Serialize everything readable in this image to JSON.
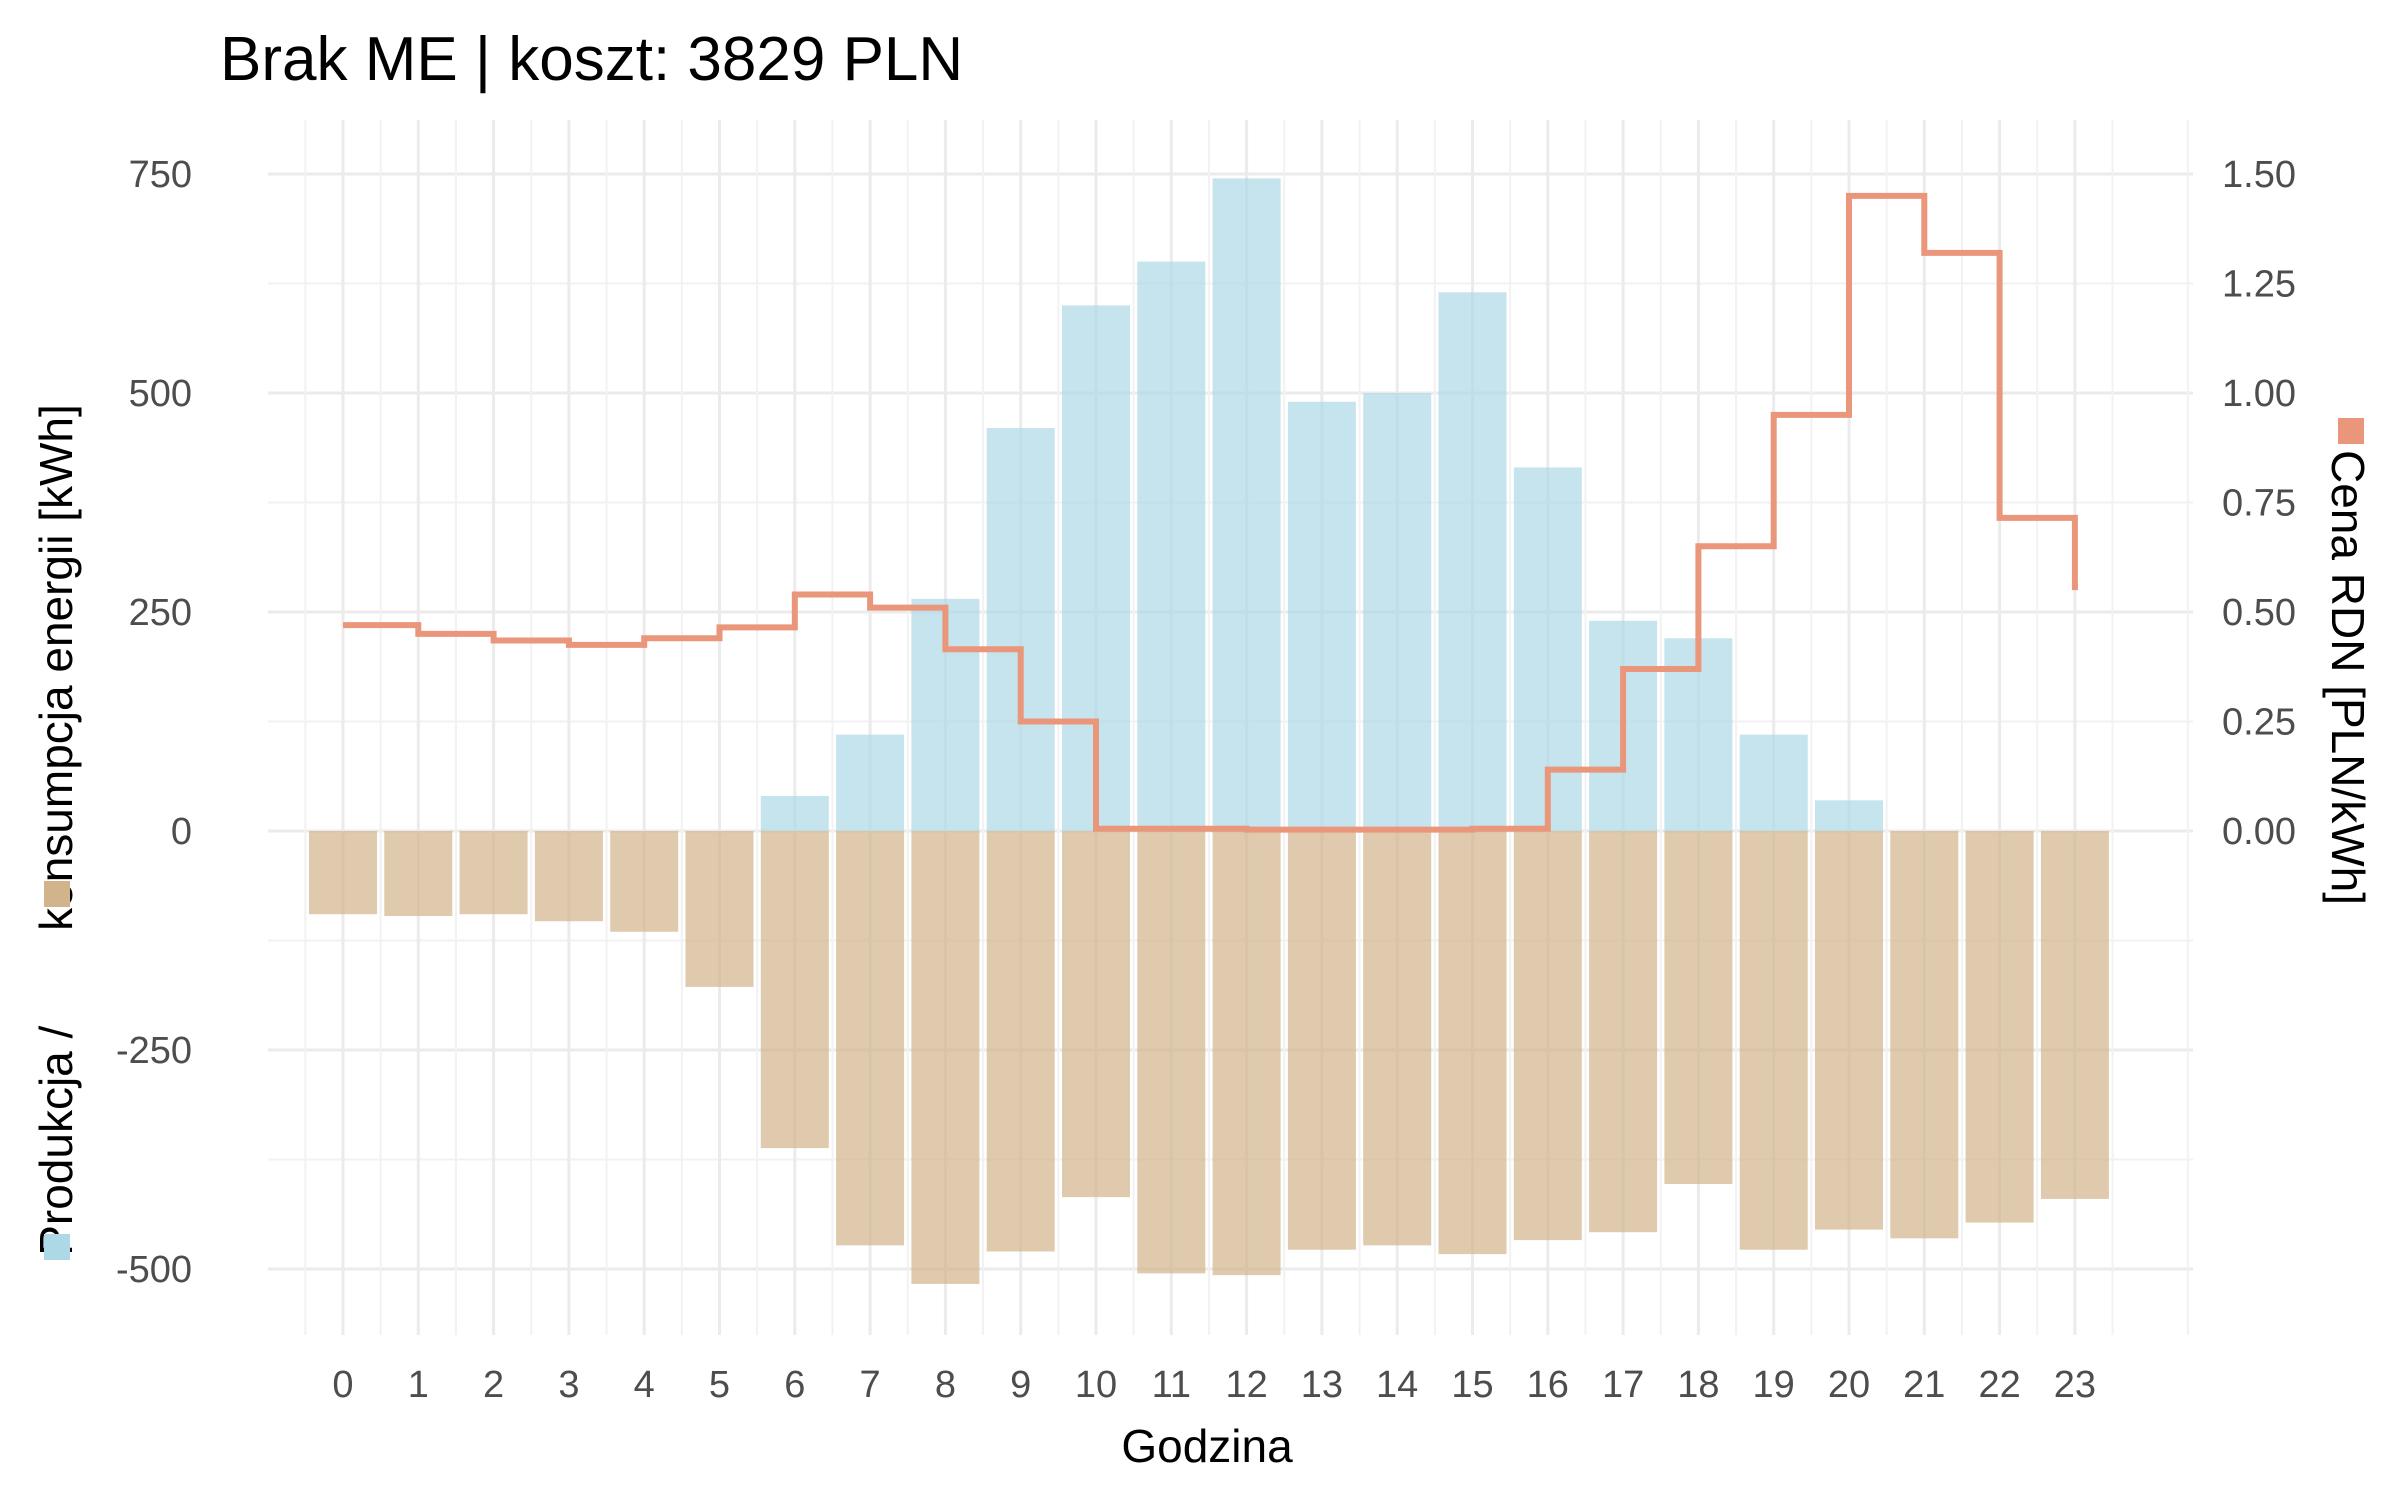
{
  "chart_data": {
    "type": "bar",
    "title": "Brak ME | koszt: 3829 PLN",
    "xlabel": "Godzina",
    "ylabel_left_parts": [
      "Produkcja /",
      "konsumpcja energii [kWh]"
    ],
    "ylabel_right": "Cena RDN [PLN/kWh]",
    "categories": [
      "0",
      "1",
      "2",
      "3",
      "4",
      "5",
      "6",
      "7",
      "8",
      "9",
      "10",
      "11",
      "12",
      "13",
      "14",
      "15",
      "16",
      "17",
      "18",
      "19",
      "20",
      "21",
      "22",
      "23"
    ],
    "ylim": [
      -575,
      790
    ],
    "ylim_right": [
      -1.15,
      1.58
    ],
    "yticks": [
      750,
      500,
      250,
      0,
      -250,
      -500
    ],
    "ytick_labels": [
      "750",
      "500",
      "250",
      "0",
      "-250",
      "-500"
    ],
    "yticks_right": [
      1.5,
      1.25,
      1.0,
      0.75,
      0.5,
      0.25,
      0.0
    ],
    "ytick_right_labels": [
      "1.50",
      "1.25",
      "1.00",
      "0.75",
      "0.50",
      "0.25",
      "0.00"
    ],
    "series": [
      {
        "name": "Produkcja",
        "kind": "bar",
        "color": "#add8e6",
        "values": [
          0,
          0,
          0,
          0,
          0,
          0,
          40,
          110,
          265,
          460,
          600,
          650,
          745,
          490,
          500,
          615,
          415,
          240,
          220,
          110,
          35,
          0,
          0,
          0
        ]
      },
      {
        "name": "Konsumpcja",
        "kind": "bar",
        "color": "#d2b48c",
        "values": [
          -95,
          -97,
          -95,
          -103,
          -115,
          -178,
          -362,
          -473,
          -517,
          -480,
          -418,
          -505,
          -507,
          -478,
          -473,
          -483,
          -467,
          -458,
          -403,
          -478,
          -455,
          -465,
          -447,
          -420
        ]
      },
      {
        "name": "Cena RDN",
        "kind": "step-line",
        "axis": "right",
        "color": "#e9967a",
        "values": [
          0.47,
          0.45,
          0.435,
          0.425,
          0.44,
          0.465,
          0.54,
          0.51,
          0.415,
          0.25,
          0.005,
          0.005,
          0.003,
          0.003,
          0.003,
          0.005,
          0.14,
          0.37,
          0.65,
          0.95,
          1.45,
          1.32,
          0.715,
          0.55
        ]
      }
    ],
    "legend_keys": {
      "left_top": "#d2b48c",
      "left_bottom": "#add8e6",
      "right": "#e9967a"
    },
    "grid": true
  }
}
